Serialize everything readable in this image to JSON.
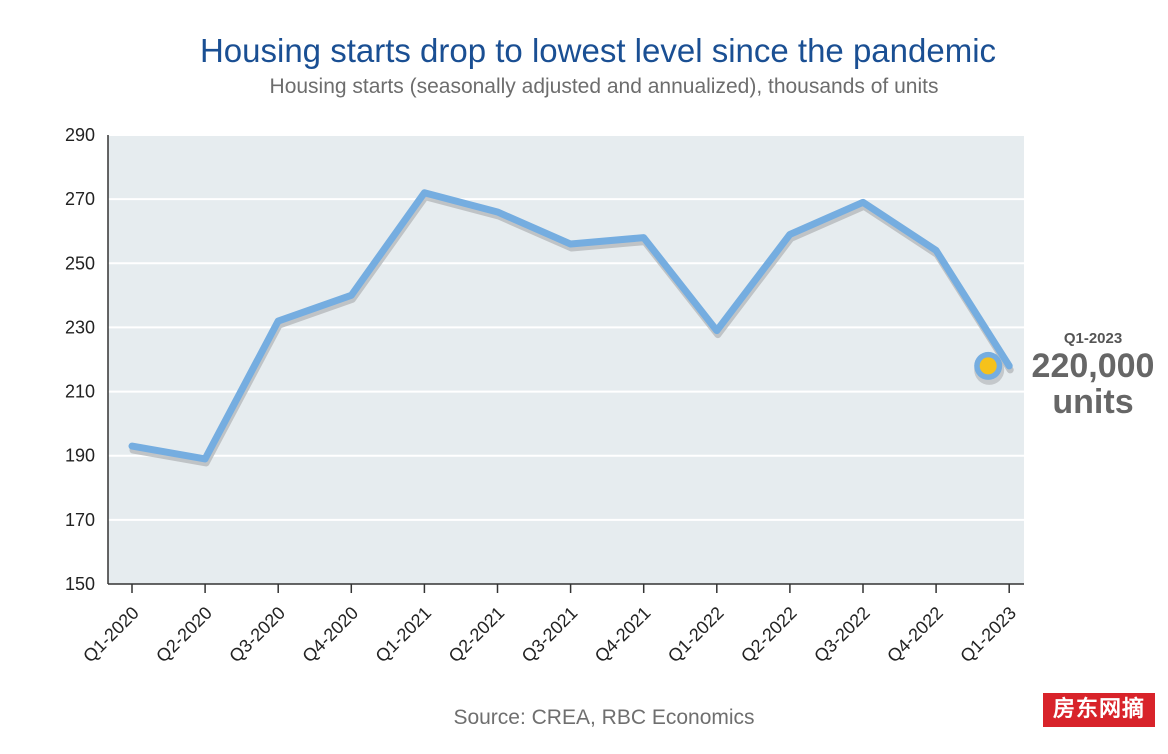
{
  "chart_data": {
    "type": "line",
    "title": "Housing starts drop to lowest level since the pandemic",
    "subtitle": "Housing starts (seasonally adjusted and annualized), thousands of units",
    "categories": [
      "Q1-2020",
      "Q2-2020",
      "Q3-2020",
      "Q4-2020",
      "Q1-2021",
      "Q2-2021",
      "Q3-2021",
      "Q4-2021",
      "Q1-2022",
      "Q2-2022",
      "Q3-2022",
      "Q4-2022",
      "Q1-2023"
    ],
    "series": [
      {
        "values": [
          193,
          189,
          232,
          240,
          272,
          266,
          256,
          258,
          229,
          259,
          269,
          254,
          218
        ]
      }
    ],
    "ylim": [
      150,
      290
    ],
    "yticks": [
      150,
      170,
      190,
      210,
      230,
      250,
      270,
      290
    ],
    "grid": true,
    "line_color": "#75ade0",
    "background_color": "#e6ecef",
    "annotation": {
      "period": "Q1-2023",
      "value": "220,000",
      "unit": "units",
      "marker_color": "#f6c21b"
    },
    "source": "Source: CREA, RBC Economics"
  },
  "watermark": "房东网摘"
}
